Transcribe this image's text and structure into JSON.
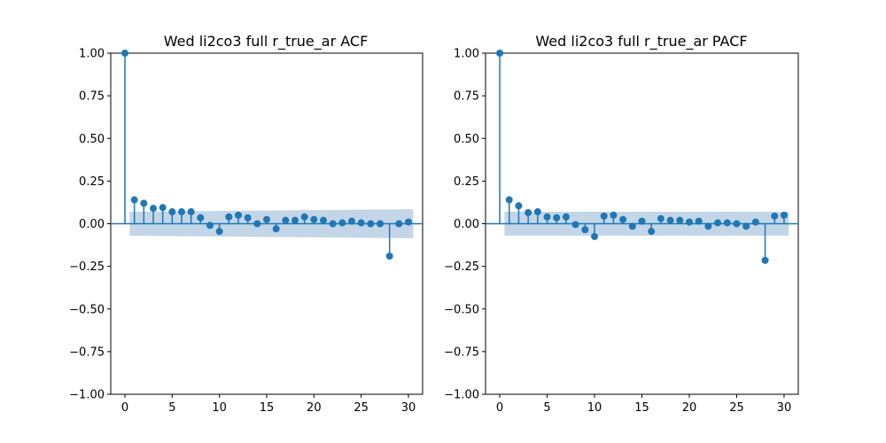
{
  "colors": {
    "series": "#1f77b4",
    "band": "#b9cfe4",
    "axis": "#000000",
    "background": "#ffffff"
  },
  "chart_data": [
    {
      "type": "stem",
      "title": "Wed li2co3 full r_true_ar ACF",
      "xlabel": "",
      "ylabel": "",
      "xlim": [
        -1.5,
        31.5
      ],
      "ylim": [
        -1.0,
        1.0
      ],
      "grid": false,
      "xticks": [
        0,
        5,
        10,
        15,
        20,
        25,
        30
      ],
      "yticks": [
        -1.0,
        -0.75,
        -0.5,
        -0.25,
        0.0,
        0.25,
        0.5,
        0.75,
        1.0
      ],
      "xtick_labels": [
        "0",
        "5",
        "10",
        "15",
        "20",
        "25",
        "30"
      ],
      "ytick_labels": [
        "−1.00",
        "−0.75",
        "−0.50",
        "−0.25",
        "0.00",
        "0.25",
        "0.50",
        "0.75",
        "1.00"
      ],
      "lags": [
        0,
        1,
        2,
        3,
        4,
        5,
        6,
        7,
        8,
        9,
        10,
        11,
        12,
        13,
        14,
        15,
        16,
        17,
        18,
        19,
        20,
        21,
        22,
        23,
        24,
        25,
        26,
        27,
        28,
        29,
        30
      ],
      "values": [
        1.0,
        0.14,
        0.12,
        0.09,
        0.095,
        0.07,
        0.07,
        0.07,
        0.035,
        -0.01,
        -0.045,
        0.04,
        0.05,
        0.035,
        0.0,
        0.025,
        -0.03,
        0.02,
        0.02,
        0.04,
        0.025,
        0.02,
        0.0,
        0.005,
        0.015,
        0.005,
        0.0,
        0.0,
        -0.19,
        0.0,
        0.01
      ],
      "confidence_band": {
        "x_start": 0.5,
        "x_end": 30.5,
        "lower_start": -0.07,
        "upper_start": 0.07,
        "lower_end": -0.085,
        "upper_end": 0.085
      }
    },
    {
      "type": "stem",
      "title": "Wed li2co3 full r_true_ar PACF",
      "xlabel": "",
      "ylabel": "",
      "xlim": [
        -1.5,
        31.5
      ],
      "ylim": [
        -1.0,
        1.0
      ],
      "grid": false,
      "xticks": [
        0,
        5,
        10,
        15,
        20,
        25,
        30
      ],
      "yticks": [
        -1.0,
        -0.75,
        -0.5,
        -0.25,
        0.0,
        0.25,
        0.5,
        0.75,
        1.0
      ],
      "xtick_labels": [
        "0",
        "5",
        "10",
        "15",
        "20",
        "25",
        "30"
      ],
      "ytick_labels": [
        "−1.00",
        "−0.75",
        "−0.50",
        "−0.25",
        "0.00",
        "0.25",
        "0.50",
        "0.75",
        "1.00"
      ],
      "lags": [
        0,
        1,
        2,
        3,
        4,
        5,
        6,
        7,
        8,
        9,
        10,
        11,
        12,
        13,
        14,
        15,
        16,
        17,
        18,
        19,
        20,
        21,
        22,
        23,
        24,
        25,
        26,
        27,
        28,
        29,
        30
      ],
      "values": [
        1.0,
        0.14,
        0.105,
        0.065,
        0.07,
        0.04,
        0.035,
        0.04,
        -0.005,
        -0.035,
        -0.075,
        0.045,
        0.05,
        0.025,
        -0.015,
        0.015,
        -0.045,
        0.03,
        0.02,
        0.02,
        0.01,
        0.015,
        -0.015,
        0.005,
        0.005,
        0.0,
        -0.015,
        0.01,
        -0.215,
        0.045,
        0.05
      ],
      "confidence_band": {
        "x_start": 0.5,
        "x_end": 30.5,
        "lower_start": -0.07,
        "upper_start": 0.07,
        "lower_end": -0.07,
        "upper_end": 0.07
      }
    }
  ]
}
